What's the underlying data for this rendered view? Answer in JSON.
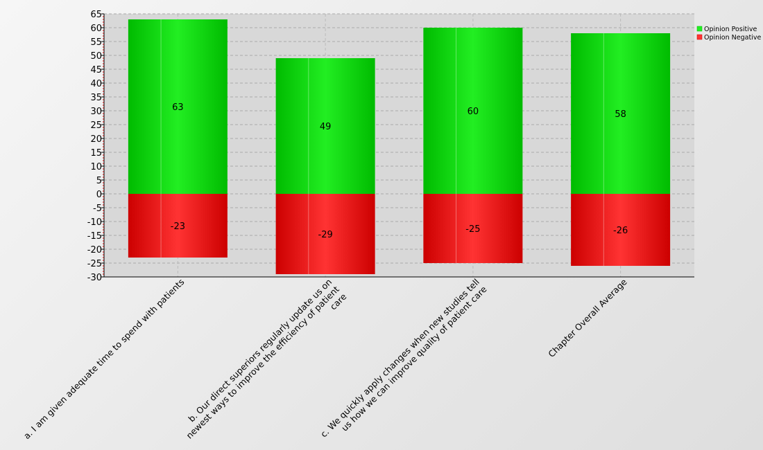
{
  "chart_data": {
    "type": "bar",
    "stacked": true,
    "categories": [
      "a. I am given adequate time to spend with patients",
      "b. Our direct superiors regularly update us on newest ways to improve the efficiency of patient care",
      "c. We quickly apply changes when new studies tell us how we can improve quality of patient care",
      "Chapter Overall Average"
    ],
    "category_lines": [
      [
        "a. I am given adequate time to spend with patients"
      ],
      [
        "b. Our direct superiors regularly update us on",
        "newest ways to improve the efficiency of patient",
        "care"
      ],
      [
        "c. We quickly apply changes when new studies tell",
        "us how we can improve quality of patient care"
      ],
      [
        "Chapter Overall Average"
      ]
    ],
    "series": [
      {
        "name": "Opinion Positive",
        "values": [
          63,
          49,
          60,
          58
        ],
        "color": "#22ee22",
        "dark": "#00bb00"
      },
      {
        "name": "Opinion Negative",
        "values": [
          -23,
          -29,
          -25,
          -26
        ],
        "color": "#ff3333",
        "dark": "#cc0000"
      }
    ],
    "ylim": [
      -30,
      65
    ],
    "yticks": [
      -30,
      -25,
      -20,
      -15,
      -10,
      -5,
      0,
      5,
      10,
      15,
      20,
      25,
      30,
      35,
      40,
      45,
      50,
      55,
      60,
      65
    ],
    "grid": true,
    "legend_position": "top-right",
    "title": "",
    "xlabel": "",
    "ylabel": ""
  }
}
